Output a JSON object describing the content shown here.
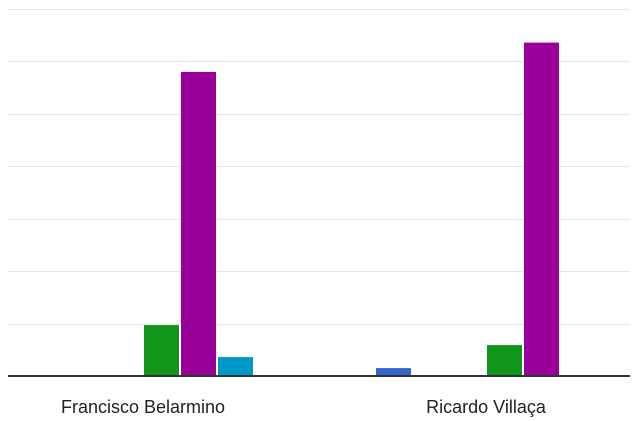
{
  "chart_data": {
    "type": "bar",
    "categories": [
      "Francisco Belarmino",
      "Ricardo Villaça"
    ],
    "series": [
      {
        "color": "#3366cc",
        "values": [
          0,
          1.5
        ]
      },
      {
        "color": "#dc3912",
        "values": [
          0,
          0
        ]
      },
      {
        "color": "#ff9900",
        "values": [
          0,
          0
        ]
      },
      {
        "color": "#109618",
        "values": [
          9.7,
          5.9
        ]
      },
      {
        "color": "#990099",
        "values": [
          58,
          63.6
        ]
      },
      {
        "color": "#0099c6",
        "values": [
          3.6,
          0
        ]
      }
    ],
    "ylim": [
      0,
      70
    ],
    "y_gridlines": [
      0,
      10,
      20,
      30,
      40,
      50,
      60,
      70
    ],
    "grid": true,
    "legend": "none"
  }
}
